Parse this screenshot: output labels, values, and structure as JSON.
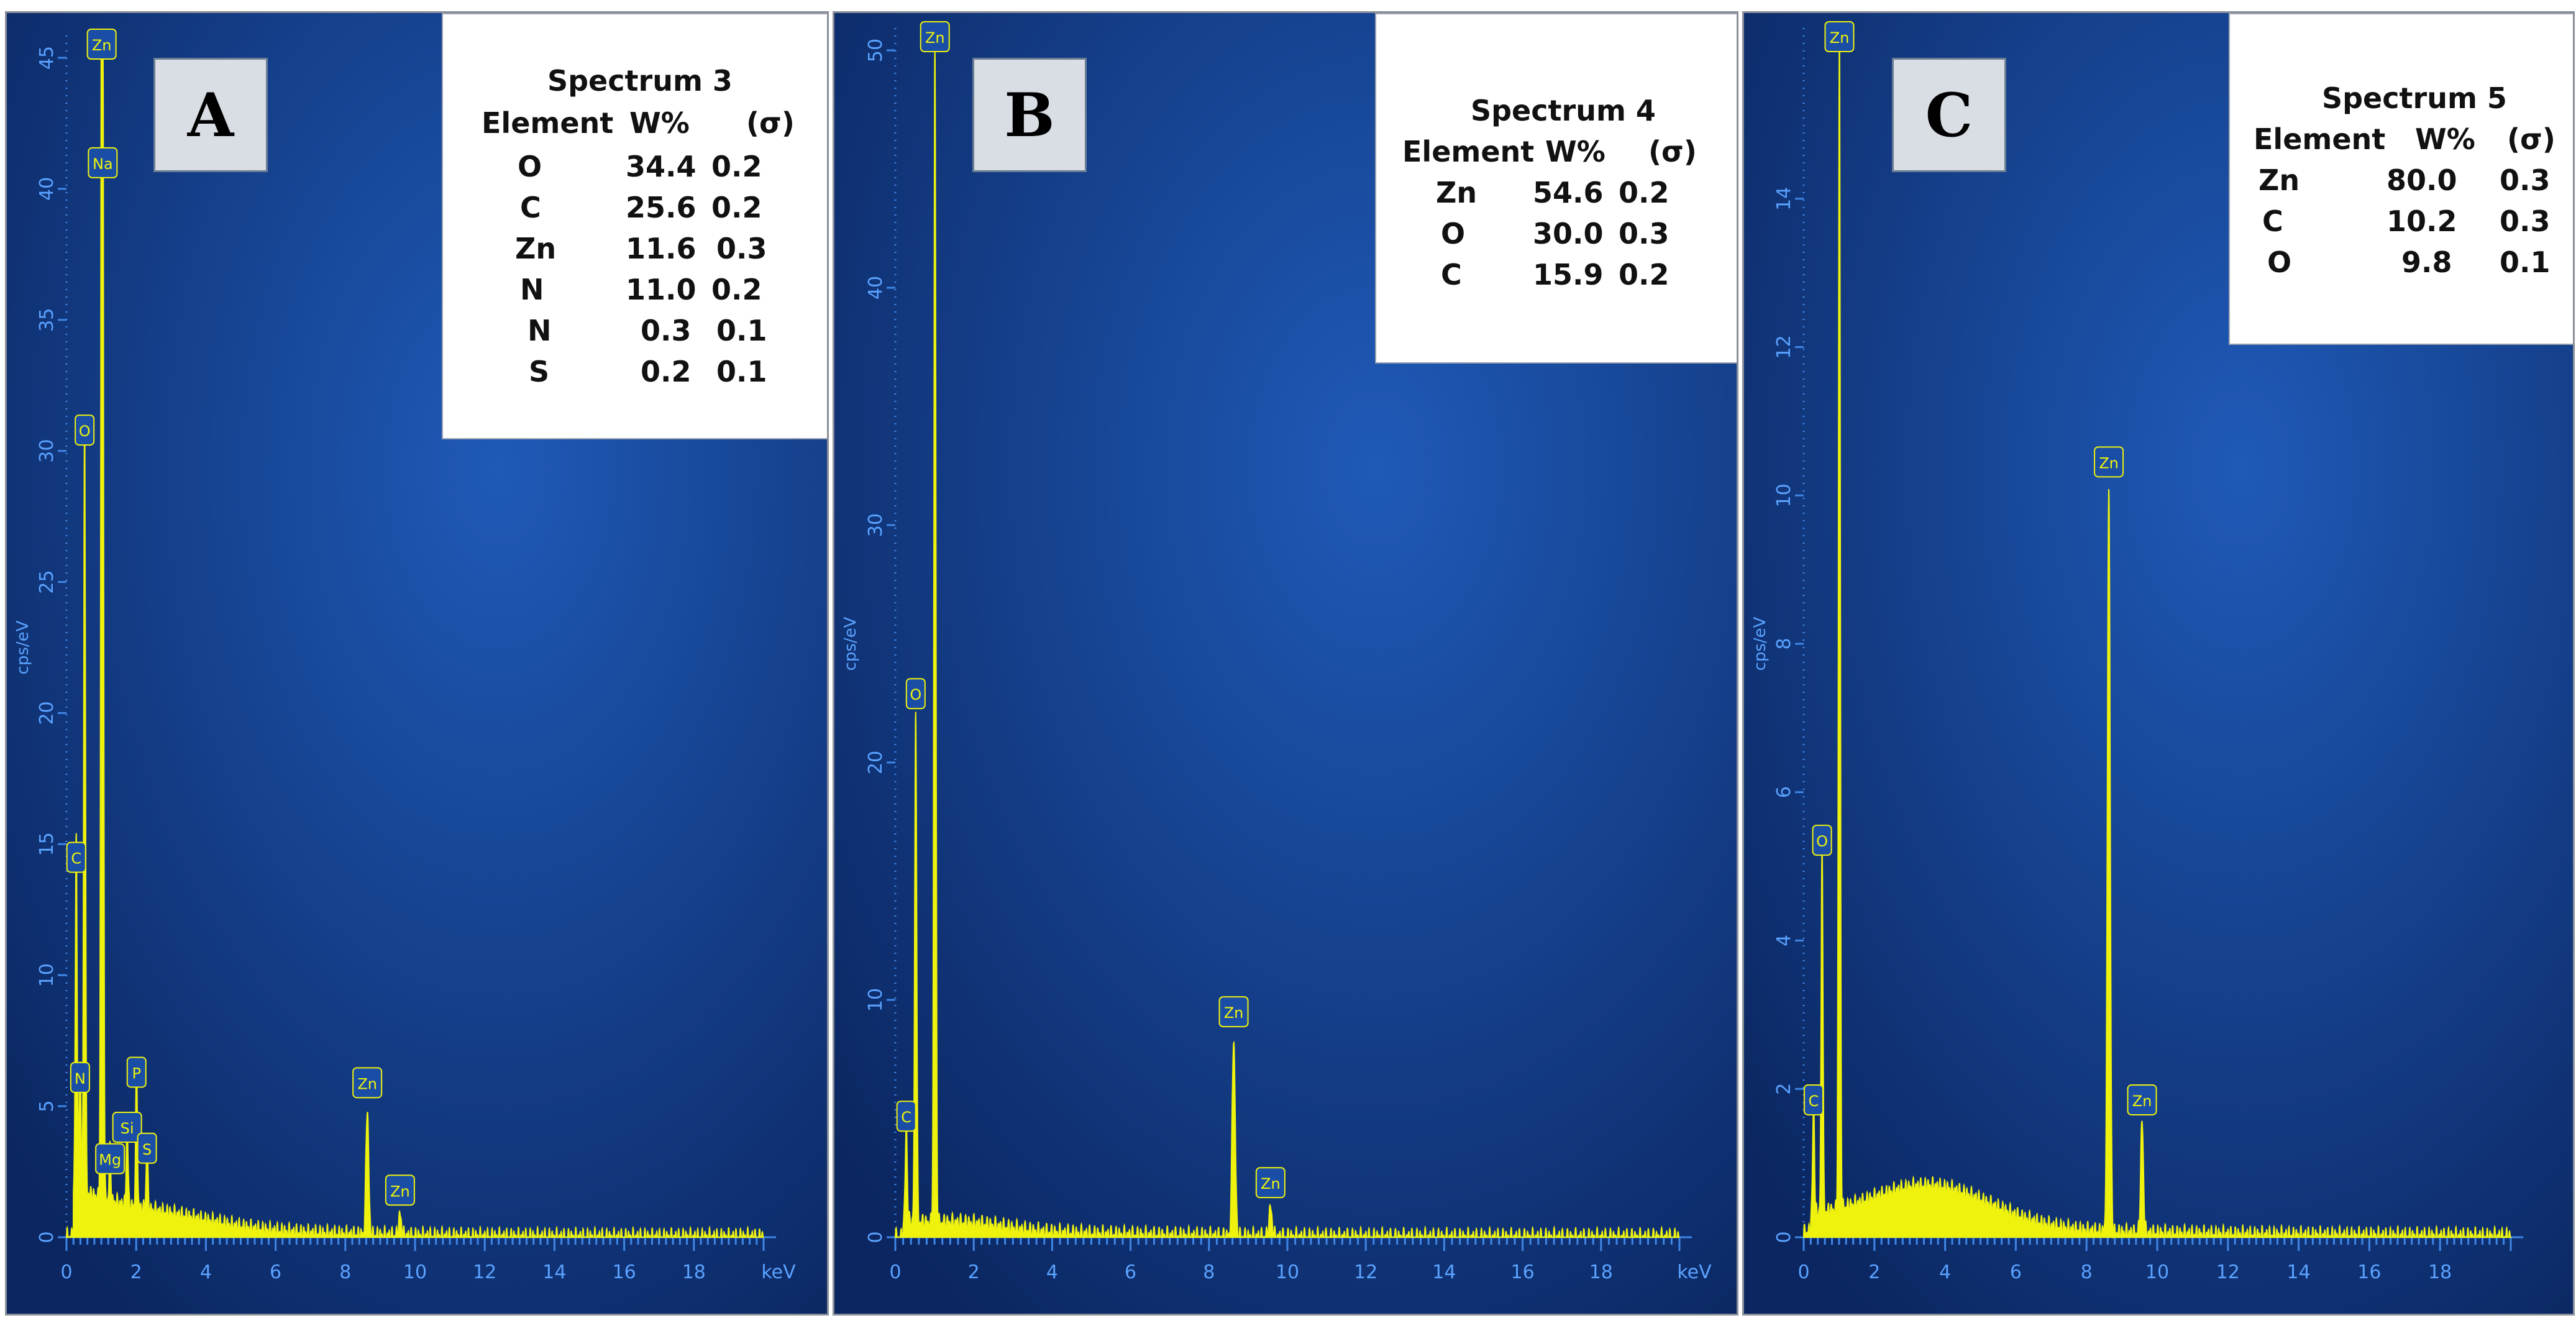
{
  "figure": {
    "background": "#ffffff",
    "plot_bg_dark": "#0b2660",
    "plot_bg_light": "#1f5ab8",
    "spectrum_color": "#eef20d",
    "axis_color": "#3f86e6",
    "axis_label_color": "#5aa2ff",
    "marker_fill": "#1a4ea6",
    "marker_text_color": "#eef20d"
  },
  "chart_data": [
    {
      "type": "line",
      "panel_label": "A",
      "xlabel": "keV",
      "ylabel": "cps/eV",
      "xlim": [
        0,
        20
      ],
      "ylim": [
        0,
        45
      ],
      "x_ticks": [
        "0",
        "2",
        "4",
        "6",
        "8",
        "10",
        "12",
        "14",
        "16",
        "18"
      ],
      "y_ticks": [
        "0",
        "5",
        "10",
        "15",
        "20",
        "25",
        "30",
        "35",
        "40",
        "45"
      ],
      "peaks": [
        {
          "label": "C",
          "x": 0.28,
          "y": 13.5
        },
        {
          "label": "N",
          "x": 0.39,
          "y": 5.1
        },
        {
          "label": "O",
          "x": 0.52,
          "y": 29.8
        },
        {
          "label": "Zn",
          "x": 1.01,
          "y": 45.0
        },
        {
          "label": "Na",
          "x": 1.04,
          "y": 40.0
        },
        {
          "label": "Mg",
          "x": 1.25,
          "y": 2.0
        },
        {
          "label": "Si",
          "x": 1.74,
          "y": 3.2
        },
        {
          "label": "P",
          "x": 2.01,
          "y": 5.3
        },
        {
          "label": "S",
          "x": 2.31,
          "y": 2.4
        },
        {
          "label": "Zn",
          "x": 8.63,
          "y": 4.9
        },
        {
          "label": "Zn",
          "x": 9.57,
          "y": 0.8
        }
      ],
      "table": {
        "title": "Spectrum 3",
        "headers": [
          "Element",
          "W%",
          "(σ)"
        ],
        "rows": [
          {
            "element": "O",
            "w": "34.4",
            "sigma": "0.2"
          },
          {
            "element": "C",
            "w": "25.6",
            "sigma": "0.2"
          },
          {
            "element": "Zn",
            "w": "11.6",
            "sigma": "0.3"
          },
          {
            "element": "N",
            "w": "11.0",
            "sigma": "0.2"
          },
          {
            "element": "N",
            "w": "0.3",
            "sigma": "0.1"
          },
          {
            "element": "S",
            "w": "0.2",
            "sigma": "0.1"
          }
        ]
      }
    },
    {
      "type": "line",
      "panel_label": "B",
      "xlabel": "keV",
      "ylabel": "cps/eV",
      "xlim": [
        0,
        20
      ],
      "ylim": [
        0,
        50
      ],
      "x_ticks": [
        "0",
        "2",
        "4",
        "6",
        "8",
        "10",
        "12",
        "14",
        "16",
        "18"
      ],
      "y_ticks": [
        "0",
        "10",
        "20",
        "30",
        "40",
        "50"
      ],
      "peaks": [
        {
          "label": "C",
          "x": 0.28,
          "y": 4.0
        },
        {
          "label": "O",
          "x": 0.52,
          "y": 21.8
        },
        {
          "label": "Zn",
          "x": 1.01,
          "y": 50.0
        },
        {
          "label": "Zn",
          "x": 8.63,
          "y": 8.4
        },
        {
          "label": "Zn",
          "x": 9.57,
          "y": 1.2
        }
      ],
      "table": {
        "title": "Spectrum 4",
        "headers": [
          "Element",
          "W%",
          "(σ)"
        ],
        "rows": [
          {
            "element": "Zn",
            "w": "54.6",
            "sigma": "0.2"
          },
          {
            "element": "O",
            "w": "30.0",
            "sigma": "0.3"
          },
          {
            "element": "C",
            "w": "15.9",
            "sigma": "0.2"
          }
        ]
      }
    },
    {
      "type": "line",
      "panel_label": "C",
      "xlabel": "",
      "ylabel": "cps/eV",
      "xlim": [
        0,
        20
      ],
      "ylim": [
        0,
        16
      ],
      "x_ticks": [
        "0",
        "2",
        "4",
        "6",
        "8",
        "10",
        "12",
        "14",
        "16",
        "18"
      ],
      "y_ticks": [
        "0",
        "2",
        "4",
        "6",
        "8",
        "10",
        "12",
        "14"
      ],
      "peaks": [
        {
          "label": "C",
          "x": 0.28,
          "y": 1.5
        },
        {
          "label": "O",
          "x": 0.52,
          "y": 5.0
        },
        {
          "label": "Zn",
          "x": 1.01,
          "y": 16.0
        },
        {
          "label": "Zn",
          "x": 8.63,
          "y": 10.1
        },
        {
          "label": "Zn",
          "x": 9.57,
          "y": 1.5
        }
      ],
      "table": {
        "title": "Spectrum 5",
        "headers": [
          "Element",
          "W%",
          "(σ)"
        ],
        "rows": [
          {
            "element": "Zn",
            "w": "80.0",
            "sigma": "0.3"
          },
          {
            "element": "C",
            "w": "10.2",
            "sigma": "0.3"
          },
          {
            "element": "O",
            "w": "9.8",
            "sigma": "0.1"
          }
        ]
      }
    }
  ]
}
